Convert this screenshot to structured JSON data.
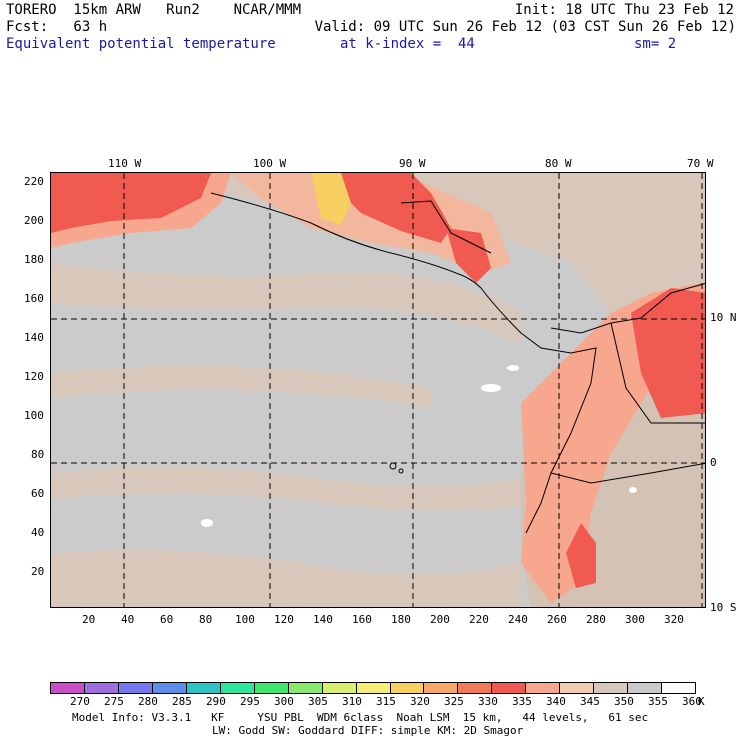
{
  "header": {
    "line1_left": "TORERO  15km ARW   Run2    NCAR/MMM",
    "line1_right": "Init: 18 UTC Thu 23 Feb 12",
    "line2_left": "Fcst:   63 h",
    "line2_right": "Valid: 09 UTC Sun 26 Feb 12 (03 CST Sun 26 Feb 12)",
    "field": "Equivalent potential temperature",
    "level": "at k-index =  44",
    "smoothing": "sm= 2"
  },
  "map": {
    "top_lon_labels": [
      "110 W",
      "100 W",
      "90 W",
      "80 W",
      "70 W"
    ],
    "right_lat_labels": [
      "10 N",
      "0",
      "10 S"
    ],
    "left_y_ticks": [
      "220",
      "200",
      "180",
      "160",
      "140",
      "120",
      "100",
      "80",
      "60",
      "40",
      "20"
    ],
    "bottom_x_ticks": [
      "20",
      "40",
      "60",
      "80",
      "100",
      "120",
      "140",
      "160",
      "180",
      "200",
      "220",
      "240",
      "260",
      "280",
      "300",
      "320"
    ]
  },
  "colorbar": {
    "unit": "K",
    "labels": [
      "270",
      "275",
      "280",
      "285",
      "290",
      "295",
      "300",
      "305",
      "310",
      "315",
      "320",
      "325",
      "330",
      "335",
      "340",
      "345",
      "350",
      "355",
      "360"
    ],
    "colors": [
      "#c84fc8",
      "#9e6ee0",
      "#7878ee",
      "#5a8ee8",
      "#2cc4c4",
      "#2ce6a0",
      "#3ce86c",
      "#8ae86a",
      "#d8f06e",
      "#f6ec78",
      "#f8d062",
      "#f4a86a",
      "#f07a5a",
      "#f05a50",
      "#f7a78e",
      "#f2cbb2",
      "#d8c7bb",
      "#c9c9c9",
      "#ffffff"
    ]
  },
  "footer": {
    "line1": "Model Info: V3.3.1   KF     YSU PBL  WDM 6class  Noah LSM  15 km,   44 levels,   61 sec",
    "line2": "LW: Godd SW: Goddard DIFF: simple KM: 2D Smagor"
  }
}
